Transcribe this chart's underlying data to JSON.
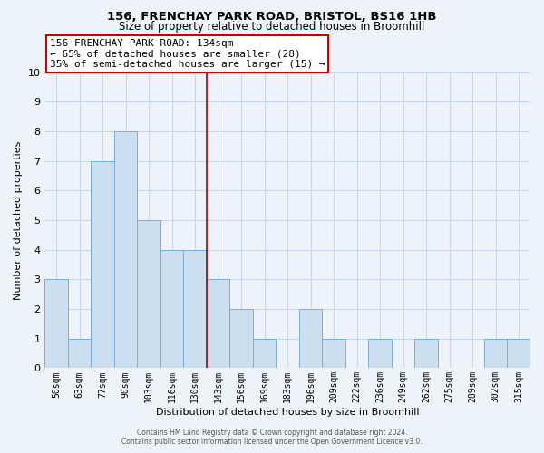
{
  "title": "156, FRENCHAY PARK ROAD, BRISTOL, BS16 1HB",
  "subtitle": "Size of property relative to detached houses in Broomhill",
  "xlabel": "Distribution of detached houses by size in Broomhill",
  "ylabel": "Number of detached properties",
  "bin_labels": [
    "50sqm",
    "63sqm",
    "77sqm",
    "90sqm",
    "103sqm",
    "116sqm",
    "130sqm",
    "143sqm",
    "156sqm",
    "169sqm",
    "183sqm",
    "196sqm",
    "209sqm",
    "222sqm",
    "236sqm",
    "249sqm",
    "262sqm",
    "275sqm",
    "289sqm",
    "302sqm",
    "315sqm"
  ],
  "bar_heights": [
    3,
    1,
    7,
    8,
    5,
    4,
    4,
    3,
    2,
    1,
    0,
    2,
    1,
    0,
    1,
    0,
    1,
    0,
    0,
    1,
    1
  ],
  "bar_color": "#ccdff0",
  "bar_edge_color": "#7aafd4",
  "grid_color": "#c8d8e8",
  "background_color": "#eef3fa",
  "vline_x_index": 6.5,
  "vline_color": "#aa0000",
  "annotation_text": "156 FRENCHAY PARK ROAD: 134sqm\n← 65% of detached houses are smaller (28)\n35% of semi-detached houses are larger (15) →",
  "annotation_box_color": "#ffffff",
  "annotation_box_edge": "#cc0000",
  "ylim": [
    0,
    10
  ],
  "yticks": [
    0,
    1,
    2,
    3,
    4,
    5,
    6,
    7,
    8,
    9,
    10
  ],
  "footer_line1": "Contains HM Land Registry data © Crown copyright and database right 2024.",
  "footer_line2": "Contains public sector information licensed under the Open Government Licence v3.0."
}
